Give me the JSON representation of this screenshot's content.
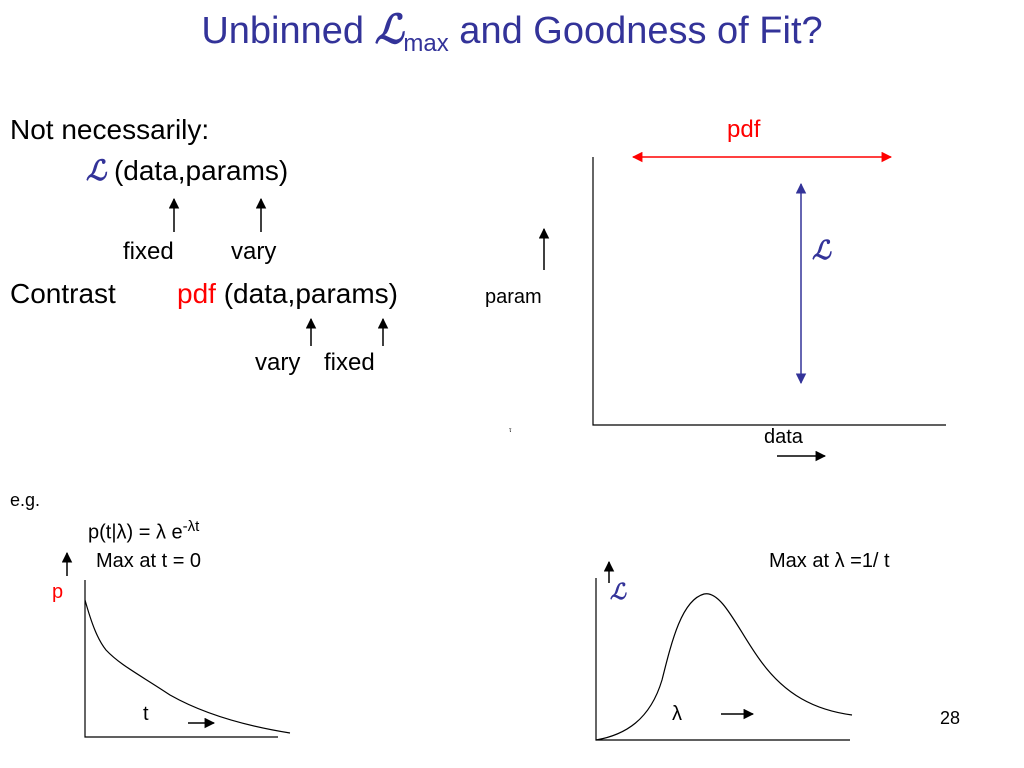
{
  "title": {
    "prefix": "Unbinned ",
    "symbol": "ℒ",
    "subscript": "max",
    "suffix": " and Goodness of Fit?"
  },
  "intro": {
    "heading": "Not necessarily:",
    "symbol": "ℒ",
    "args": "(data,params)",
    "label_fixed": "fixed",
    "label_vary": "vary"
  },
  "contrast": {
    "word": "Contrast",
    "pdf": "pdf",
    "args": "(data,params)",
    "label_vary": "vary",
    "label_fixed": "fixed"
  },
  "diagram": {
    "param_label": "param",
    "pdf_label": "pdf",
    "l_label": "ℒ",
    "data_label": "data",
    "tiny_mark": "τ"
  },
  "example": {
    "eg": "e.g.",
    "formula": "p(t|λ) = λ e",
    "exponent": "-λt",
    "max_t": "Max at t = 0",
    "max_lambda": "Max at λ =1/ t"
  },
  "plot_left": {
    "y_label": "p",
    "x_label": "t"
  },
  "plot_right": {
    "y_label": "ℒ",
    "x_label": "λ"
  },
  "slide_number": "28",
  "colors": {
    "title": "#333399",
    "accent_red": "#ff0000",
    "arrow_blue": "#333399"
  }
}
